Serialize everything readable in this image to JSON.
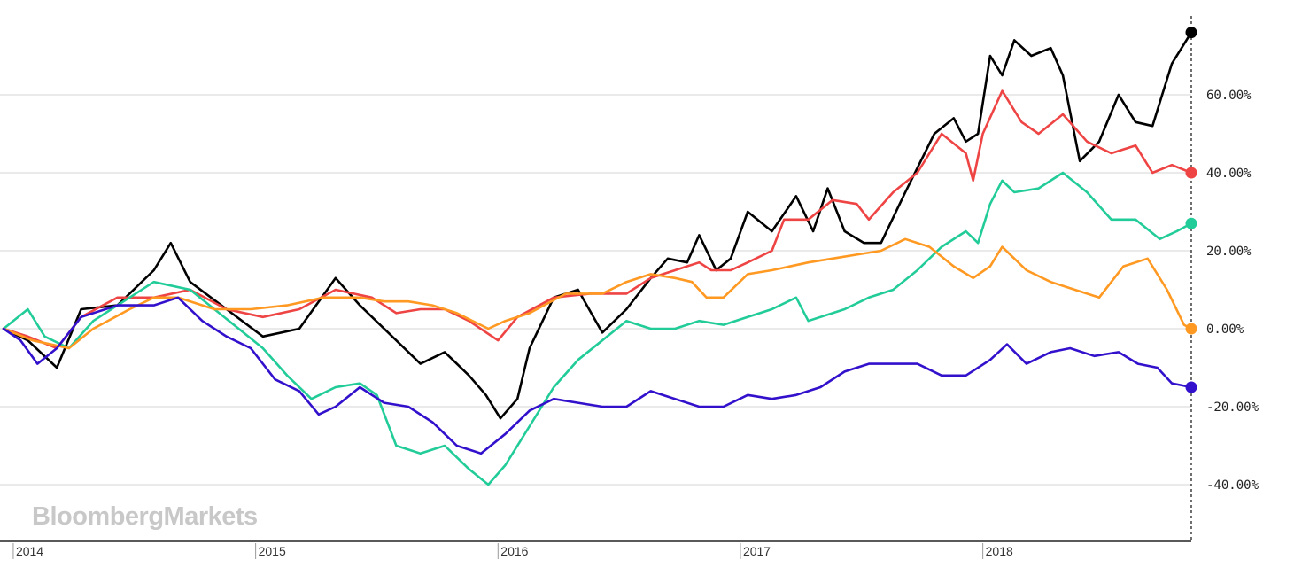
{
  "watermark": "BloombergMarkets",
  "chart_data": {
    "type": "line",
    "title": "",
    "xlabel": "",
    "ylabel": "",
    "x_range": [
      2013.98,
      2018.88
    ],
    "ylim": [
      -55,
      80
    ],
    "y_ticks": [
      60,
      40,
      20,
      0,
      -20,
      -40
    ],
    "y_tick_labels": [
      "60.00%",
      "40.00%",
      "20.00%",
      "0.00%",
      "-20.00%",
      "-40.00%"
    ],
    "x_ticks": [
      2014,
      2015,
      2016,
      2017,
      2018
    ],
    "x_tick_labels": [
      "2014",
      "2015",
      "2016",
      "2017",
      "2018"
    ],
    "grid": "horizontal",
    "legend": "none",
    "series": [
      {
        "color": "#000000",
        "points": [
          [
            2013.98,
            0
          ],
          [
            2014.08,
            -3
          ],
          [
            2014.2,
            -10
          ],
          [
            2014.3,
            5
          ],
          [
            2014.45,
            6
          ],
          [
            2014.6,
            15
          ],
          [
            2014.67,
            22
          ],
          [
            2014.75,
            12
          ],
          [
            2014.9,
            5
          ],
          [
            2015.05,
            -2
          ],
          [
            2015.2,
            0
          ],
          [
            2015.35,
            13
          ],
          [
            2015.45,
            6
          ],
          [
            2015.6,
            -3
          ],
          [
            2015.7,
            -9
          ],
          [
            2015.8,
            -6
          ],
          [
            2015.9,
            -12
          ],
          [
            2015.97,
            -17
          ],
          [
            2016.03,
            -23
          ],
          [
            2016.1,
            -18
          ],
          [
            2016.15,
            -5
          ],
          [
            2016.25,
            8
          ],
          [
            2016.35,
            10
          ],
          [
            2016.45,
            -1
          ],
          [
            2016.55,
            5
          ],
          [
            2016.65,
            13
          ],
          [
            2016.72,
            18
          ],
          [
            2016.8,
            17
          ],
          [
            2016.85,
            24
          ],
          [
            2016.92,
            15
          ],
          [
            2016.98,
            18
          ],
          [
            2017.05,
            30
          ],
          [
            2017.15,
            25
          ],
          [
            2017.25,
            34
          ],
          [
            2017.32,
            25
          ],
          [
            2017.38,
            36
          ],
          [
            2017.45,
            25
          ],
          [
            2017.53,
            22
          ],
          [
            2017.6,
            22
          ],
          [
            2017.7,
            35
          ],
          [
            2017.82,
            50
          ],
          [
            2017.9,
            54
          ],
          [
            2017.95,
            48
          ],
          [
            2018.0,
            50
          ],
          [
            2018.05,
            70
          ],
          [
            2018.1,
            65
          ],
          [
            2018.15,
            74
          ],
          [
            2018.22,
            70
          ],
          [
            2018.3,
            72
          ],
          [
            2018.35,
            65
          ],
          [
            2018.42,
            43
          ],
          [
            2018.5,
            48
          ],
          [
            2018.58,
            60
          ],
          [
            2018.65,
            53
          ],
          [
            2018.72,
            52
          ],
          [
            2018.8,
            68
          ],
          [
            2018.88,
            76
          ]
        ]
      },
      {
        "color": "#ee4444",
        "points": [
          [
            2013.98,
            0
          ],
          [
            2014.08,
            -2
          ],
          [
            2014.2,
            -5
          ],
          [
            2014.3,
            3
          ],
          [
            2014.45,
            8
          ],
          [
            2014.6,
            8
          ],
          [
            2014.75,
            10
          ],
          [
            2014.9,
            5
          ],
          [
            2015.05,
            3
          ],
          [
            2015.2,
            5
          ],
          [
            2015.35,
            10
          ],
          [
            2015.5,
            8
          ],
          [
            2015.6,
            4
          ],
          [
            2015.7,
            5
          ],
          [
            2015.8,
            5
          ],
          [
            2015.9,
            2
          ],
          [
            2016.02,
            -3
          ],
          [
            2016.1,
            3
          ],
          [
            2016.25,
            8
          ],
          [
            2016.4,
            9
          ],
          [
            2016.55,
            9
          ],
          [
            2016.65,
            13
          ],
          [
            2016.75,
            15
          ],
          [
            2016.85,
            17
          ],
          [
            2016.9,
            15
          ],
          [
            2016.98,
            15
          ],
          [
            2017.05,
            17
          ],
          [
            2017.15,
            20
          ],
          [
            2017.2,
            28
          ],
          [
            2017.3,
            28
          ],
          [
            2017.4,
            33
          ],
          [
            2017.5,
            32
          ],
          [
            2017.55,
            28
          ],
          [
            2017.65,
            35
          ],
          [
            2017.75,
            40
          ],
          [
            2017.85,
            50
          ],
          [
            2017.95,
            45
          ],
          [
            2017.98,
            38
          ],
          [
            2018.02,
            50
          ],
          [
            2018.1,
            61
          ],
          [
            2018.18,
            53
          ],
          [
            2018.25,
            50
          ],
          [
            2018.35,
            55
          ],
          [
            2018.45,
            48
          ],
          [
            2018.55,
            45
          ],
          [
            2018.65,
            47
          ],
          [
            2018.72,
            40
          ],
          [
            2018.8,
            42
          ],
          [
            2018.88,
            40
          ]
        ]
      },
      {
        "color": "#22cc99",
        "points": [
          [
            2013.98,
            0
          ],
          [
            2014.08,
            5
          ],
          [
            2014.15,
            -2
          ],
          [
            2014.25,
            -5
          ],
          [
            2014.35,
            2
          ],
          [
            2014.5,
            8
          ],
          [
            2014.6,
            12
          ],
          [
            2014.75,
            10
          ],
          [
            2014.85,
            5
          ],
          [
            2014.95,
            0
          ],
          [
            2015.05,
            -5
          ],
          [
            2015.15,
            -12
          ],
          [
            2015.25,
            -18
          ],
          [
            2015.35,
            -15
          ],
          [
            2015.45,
            -14
          ],
          [
            2015.52,
            -17
          ],
          [
            2015.6,
            -30
          ],
          [
            2015.7,
            -32
          ],
          [
            2015.8,
            -30
          ],
          [
            2015.9,
            -36
          ],
          [
            2015.98,
            -40
          ],
          [
            2016.05,
            -35
          ],
          [
            2016.15,
            -25
          ],
          [
            2016.25,
            -15
          ],
          [
            2016.35,
            -8
          ],
          [
            2016.45,
            -3
          ],
          [
            2016.55,
            2
          ],
          [
            2016.65,
            0
          ],
          [
            2016.75,
            0
          ],
          [
            2016.85,
            2
          ],
          [
            2016.95,
            1
          ],
          [
            2017.05,
            3
          ],
          [
            2017.15,
            5
          ],
          [
            2017.25,
            8
          ],
          [
            2017.3,
            2
          ],
          [
            2017.45,
            5
          ],
          [
            2017.55,
            8
          ],
          [
            2017.65,
            10
          ],
          [
            2017.75,
            15
          ],
          [
            2017.85,
            21
          ],
          [
            2017.95,
            25
          ],
          [
            2018.0,
            22
          ],
          [
            2018.05,
            32
          ],
          [
            2018.1,
            38
          ],
          [
            2018.15,
            35
          ],
          [
            2018.25,
            36
          ],
          [
            2018.35,
            40
          ],
          [
            2018.45,
            35
          ],
          [
            2018.55,
            28
          ],
          [
            2018.65,
            28
          ],
          [
            2018.75,
            23
          ],
          [
            2018.82,
            25
          ],
          [
            2018.88,
            27
          ]
        ]
      },
      {
        "color": "#ff9922",
        "points": [
          [
            2013.98,
            0
          ],
          [
            2014.1,
            -3
          ],
          [
            2014.25,
            -5
          ],
          [
            2014.35,
            0
          ],
          [
            2014.5,
            5
          ],
          [
            2014.6,
            8
          ],
          [
            2014.7,
            8
          ],
          [
            2014.85,
            5
          ],
          [
            2015.0,
            5
          ],
          [
            2015.15,
            6
          ],
          [
            2015.3,
            8
          ],
          [
            2015.45,
            8
          ],
          [
            2015.55,
            7
          ],
          [
            2015.65,
            7
          ],
          [
            2015.75,
            6
          ],
          [
            2015.85,
            4
          ],
          [
            2015.98,
            0
          ],
          [
            2016.05,
            2
          ],
          [
            2016.15,
            4
          ],
          [
            2016.3,
            9
          ],
          [
            2016.45,
            9
          ],
          [
            2016.55,
            12
          ],
          [
            2016.65,
            14
          ],
          [
            2016.75,
            13
          ],
          [
            2016.82,
            12
          ],
          [
            2016.88,
            8
          ],
          [
            2016.95,
            8
          ],
          [
            2017.05,
            14
          ],
          [
            2017.15,
            15
          ],
          [
            2017.3,
            17
          ],
          [
            2017.4,
            18
          ],
          [
            2017.5,
            19
          ],
          [
            2017.6,
            20
          ],
          [
            2017.7,
            23
          ],
          [
            2017.8,
            21
          ],
          [
            2017.9,
            16
          ],
          [
            2017.98,
            13
          ],
          [
            2018.05,
            16
          ],
          [
            2018.1,
            21
          ],
          [
            2018.2,
            15
          ],
          [
            2018.3,
            12
          ],
          [
            2018.4,
            10
          ],
          [
            2018.5,
            8
          ],
          [
            2018.6,
            16
          ],
          [
            2018.7,
            18
          ],
          [
            2018.78,
            10
          ],
          [
            2018.85,
            1
          ],
          [
            2018.88,
            0
          ]
        ]
      },
      {
        "color": "#3311cc",
        "points": [
          [
            2013.98,
            0
          ],
          [
            2014.05,
            -3
          ],
          [
            2014.12,
            -9
          ],
          [
            2014.2,
            -5
          ],
          [
            2014.3,
            3
          ],
          [
            2014.45,
            6
          ],
          [
            2014.6,
            6
          ],
          [
            2014.7,
            8
          ],
          [
            2014.8,
            2
          ],
          [
            2014.9,
            -2
          ],
          [
            2015.0,
            -5
          ],
          [
            2015.1,
            -13
          ],
          [
            2015.2,
            -16
          ],
          [
            2015.28,
            -22
          ],
          [
            2015.35,
            -20
          ],
          [
            2015.45,
            -15
          ],
          [
            2015.55,
            -19
          ],
          [
            2015.65,
            -20
          ],
          [
            2015.75,
            -24
          ],
          [
            2015.85,
            -30
          ],
          [
            2015.95,
            -32
          ],
          [
            2016.05,
            -27
          ],
          [
            2016.15,
            -21
          ],
          [
            2016.25,
            -18
          ],
          [
            2016.35,
            -19
          ],
          [
            2016.45,
            -20
          ],
          [
            2016.55,
            -20
          ],
          [
            2016.65,
            -16
          ],
          [
            2016.75,
            -18
          ],
          [
            2016.85,
            -20
          ],
          [
            2016.95,
            -20
          ],
          [
            2017.05,
            -17
          ],
          [
            2017.15,
            -18
          ],
          [
            2017.25,
            -17
          ],
          [
            2017.35,
            -15
          ],
          [
            2017.45,
            -11
          ],
          [
            2017.55,
            -9
          ],
          [
            2017.65,
            -9
          ],
          [
            2017.75,
            -9
          ],
          [
            2017.85,
            -12
          ],
          [
            2017.95,
            -12
          ],
          [
            2018.05,
            -8
          ],
          [
            2018.12,
            -4
          ],
          [
            2018.2,
            -9
          ],
          [
            2018.3,
            -6
          ],
          [
            2018.38,
            -5
          ],
          [
            2018.48,
            -7
          ],
          [
            2018.58,
            -6
          ],
          [
            2018.66,
            -9
          ],
          [
            2018.74,
            -10
          ],
          [
            2018.8,
            -14
          ],
          [
            2018.88,
            -15
          ]
        ]
      }
    ]
  }
}
